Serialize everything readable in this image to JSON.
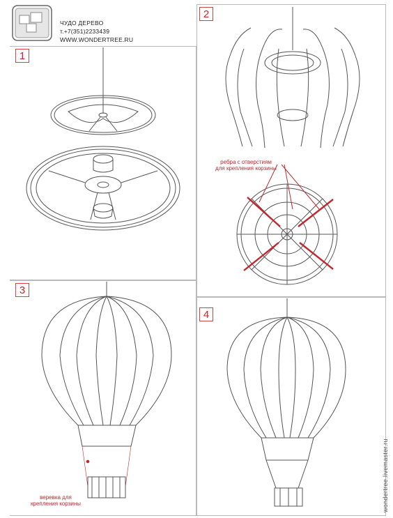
{
  "brand": {
    "company": "ЧУДО ДЕРЕВО",
    "phone": "т.+7(351)2233439",
    "website": "WWW.WONDERTREE.RU"
  },
  "steps": [
    {
      "number": "1"
    },
    {
      "number": "2",
      "annotation_line1": "ребра с отверстиям",
      "annotation_line2": "для крепления корзины"
    },
    {
      "number": "3",
      "annotation_line1": "веревка для",
      "annotation_line2": "крепления корзины"
    },
    {
      "number": "4"
    }
  ],
  "side_text": "wondertree.livemaster.ru",
  "colors": {
    "accent": "#c4262e",
    "line": "#555555"
  }
}
